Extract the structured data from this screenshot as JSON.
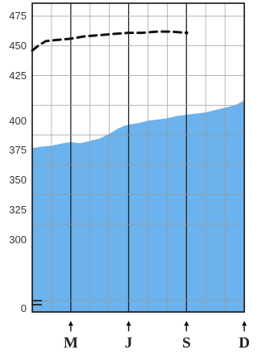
{
  "chart_data": {
    "type": "area",
    "title": "",
    "xlabel": "",
    "ylabel": "",
    "y_ticks": [
      "475",
      "450",
      "425",
      "400",
      "375",
      "350",
      "325",
      "300",
      "0"
    ],
    "x_ticks": [
      {
        "label": "M",
        "month": 3
      },
      {
        "label": "J",
        "month": 6
      },
      {
        "label": "S",
        "month": 9
      },
      {
        "label": "D",
        "month": 12
      }
    ],
    "xlim": [
      1,
      12
    ],
    "ylim": [
      275,
      480
    ],
    "axis_break": true,
    "grid": true,
    "series": [
      {
        "kind": "area",
        "color": "#6cb2ec",
        "x": [
          1,
          1.4,
          2,
          2.6,
          3,
          3.5,
          4,
          4.5,
          5,
          5.4,
          5.8,
          6.5,
          7,
          7.5,
          8,
          8.5,
          9,
          9.5,
          10,
          10.5,
          11,
          11.5,
          12
        ],
        "y": [
          364,
          365,
          366,
          368,
          369,
          368,
          370,
          372,
          376,
          380,
          383,
          385,
          387,
          388,
          389,
          391,
          392,
          393,
          394,
          396,
          398,
          400,
          404
        ]
      },
      {
        "kind": "dashed-line",
        "color": "#111111",
        "x": [
          1,
          1.3,
          1.7,
          2.3,
          3,
          3.7,
          4.5,
          5.2,
          6,
          6.7,
          7.5,
          8.2,
          9
        ],
        "y": [
          446,
          450,
          454,
          455,
          456,
          458,
          459,
          460,
          461,
          461,
          462,
          462,
          461
        ]
      }
    ]
  }
}
